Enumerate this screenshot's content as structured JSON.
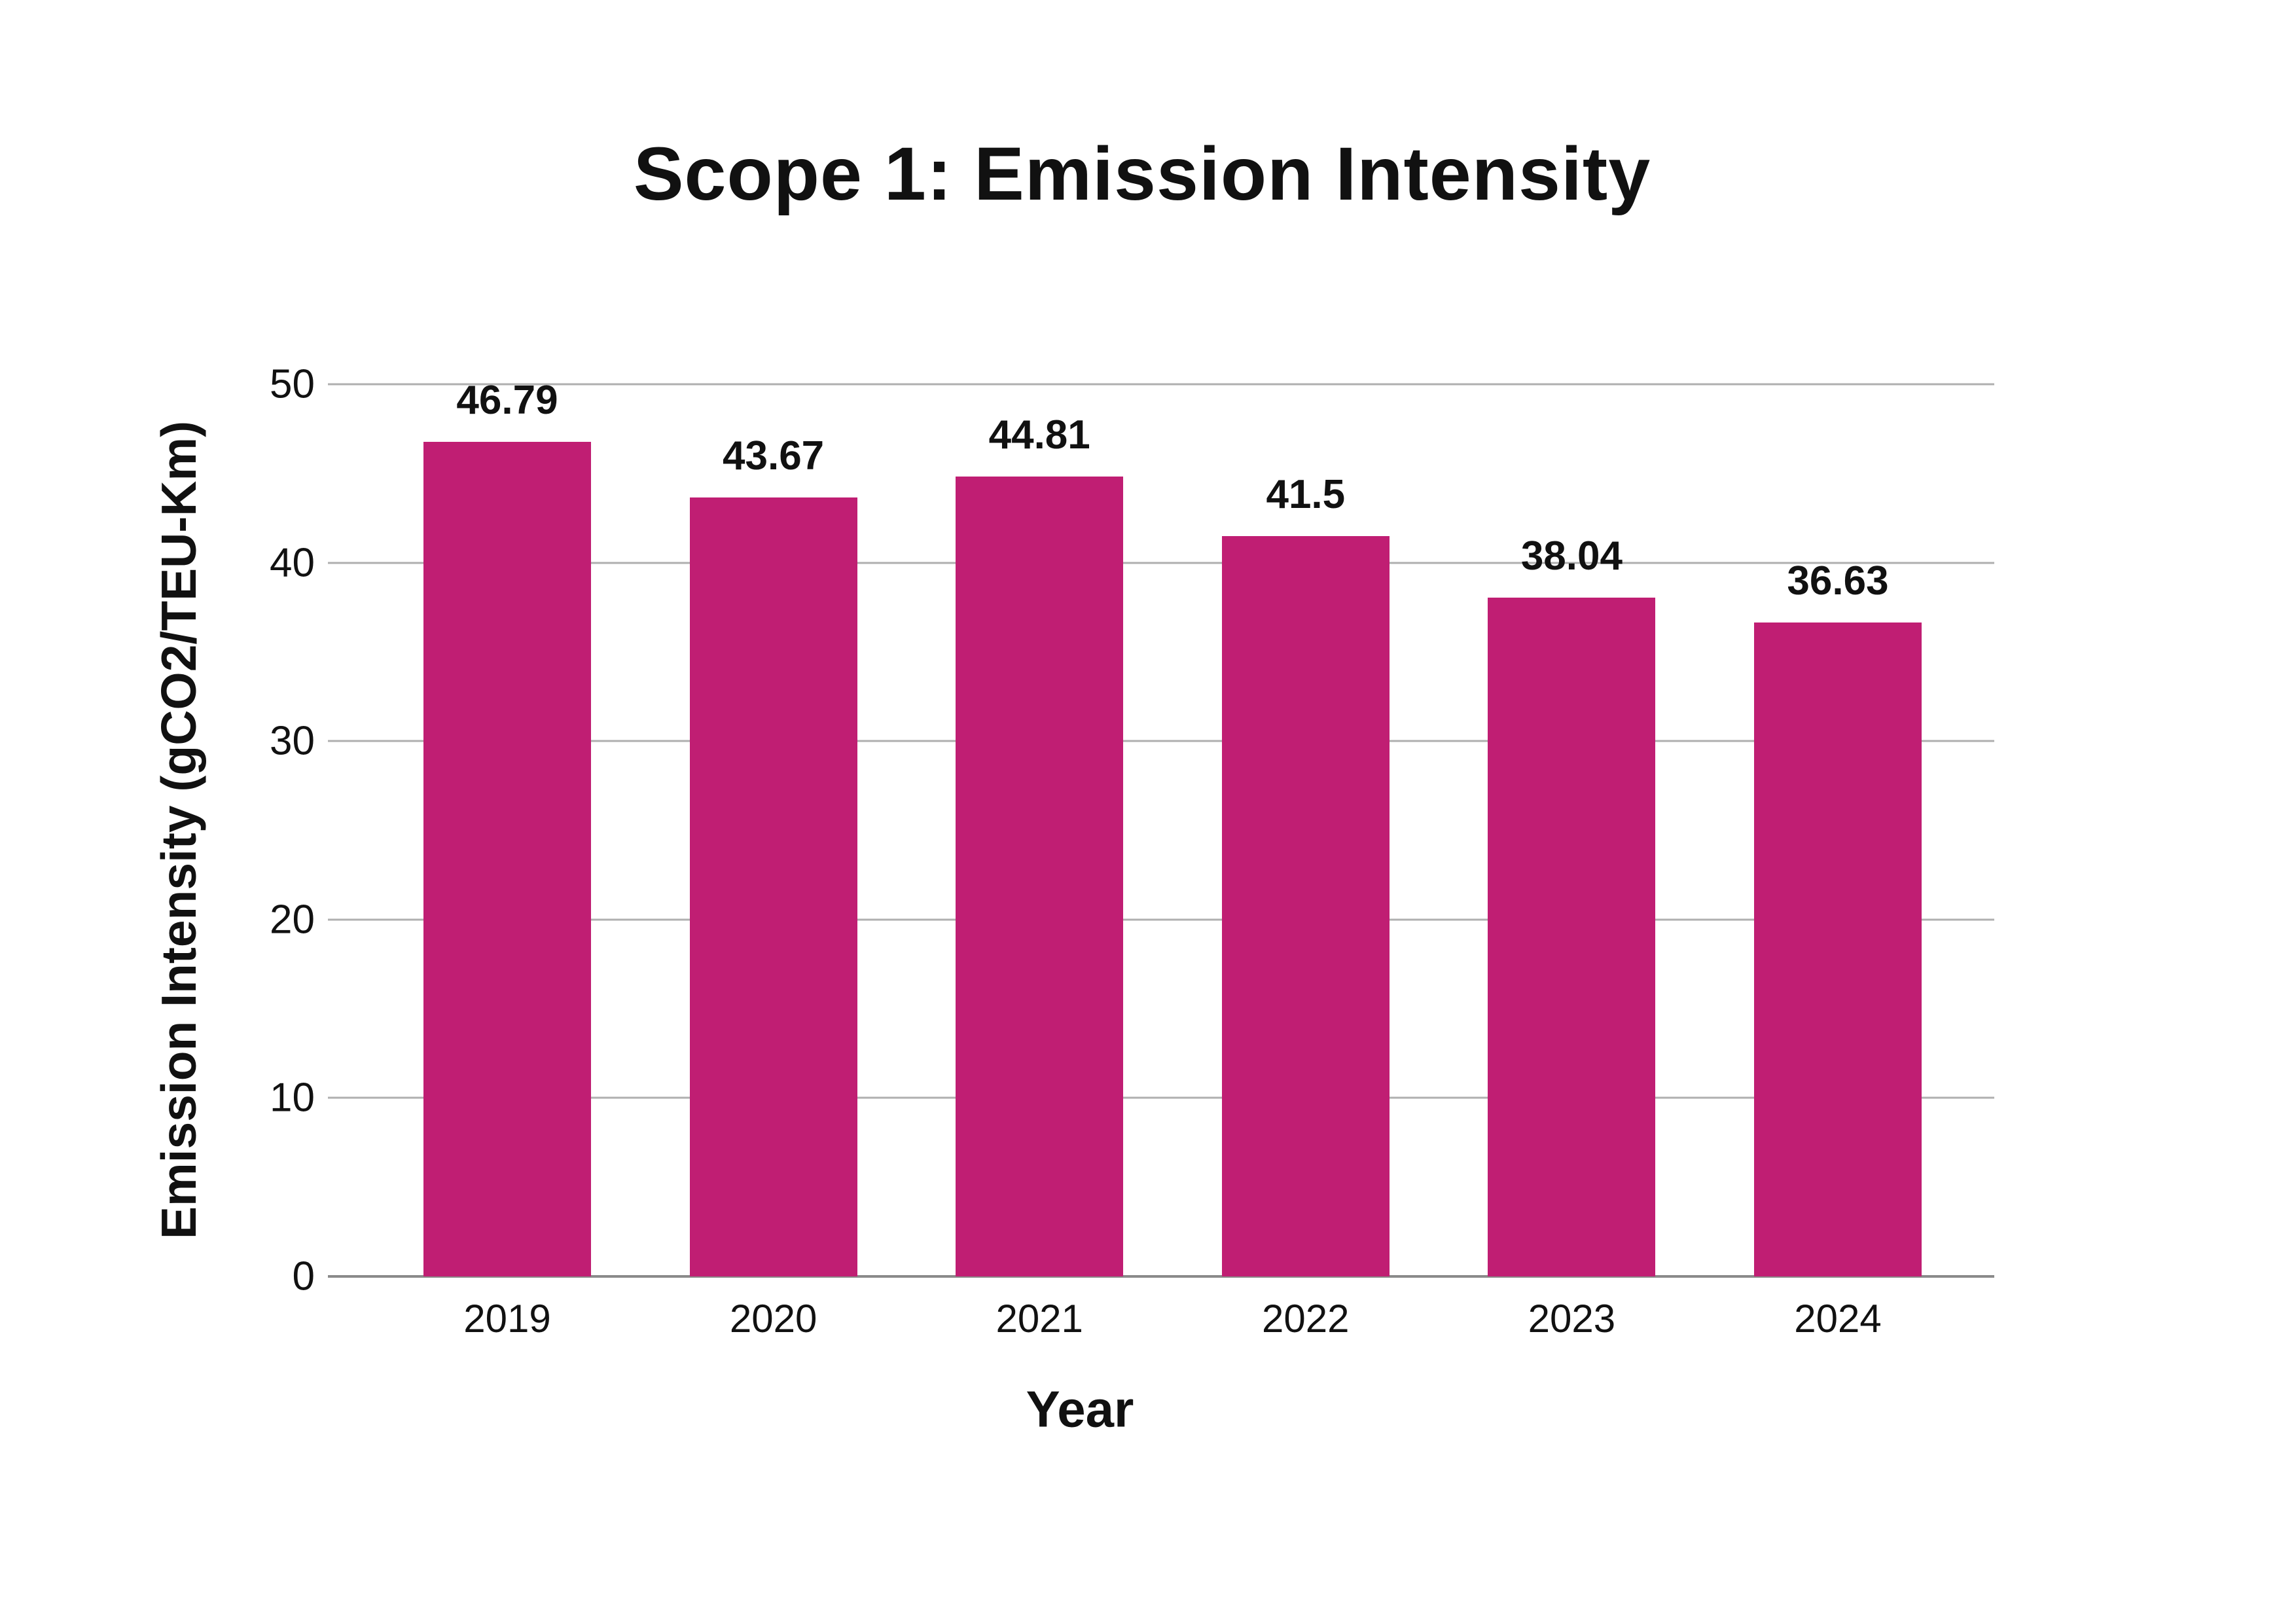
{
  "chart_data": {
    "type": "bar",
    "title": "Scope 1: Emission Intensity",
    "xlabel": "Year",
    "ylabel": "Emission Intensity (gCO2/TEU-Km)",
    "categories": [
      "2019",
      "2020",
      "2021",
      "2022",
      "2023",
      "2024"
    ],
    "values": [
      46.79,
      43.67,
      44.81,
      41.5,
      38.04,
      36.63
    ],
    "value_labels": [
      "46.79",
      "43.67",
      "44.81",
      "41.5",
      "38.04",
      "36.63"
    ],
    "series_name": "Emission Intensity",
    "ylim": [
      0,
      50
    ],
    "yticks": [
      0,
      10,
      20,
      30,
      40,
      50
    ],
    "grid": "horizontal",
    "legend_position": "none",
    "colors": {
      "bar": "#C01E73",
      "gridline": "#AFAFAF",
      "axis_line": "#8A8A8A",
      "text": "#111111",
      "background": "#FFFFFF"
    }
  }
}
